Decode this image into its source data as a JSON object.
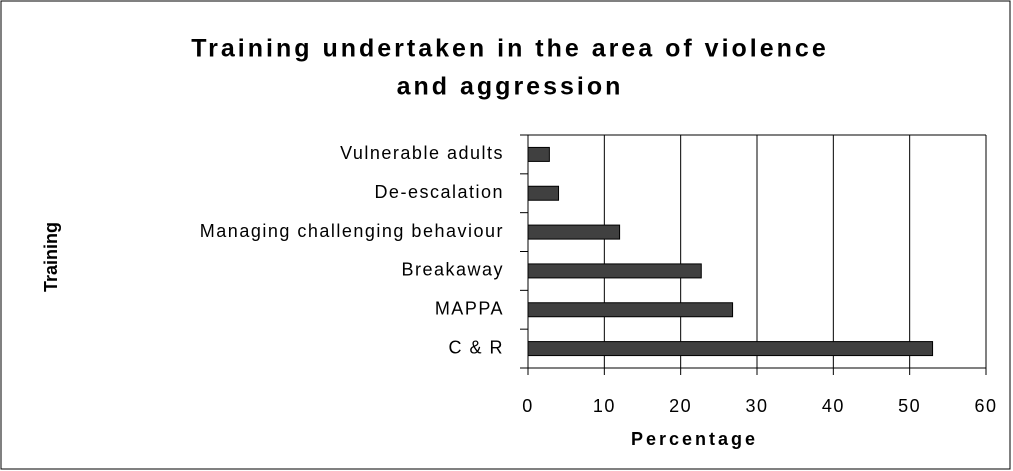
{
  "chart_data": {
    "type": "hbar",
    "title": "Training undertaken in the area of violence and aggression",
    "x_label": "Percentage",
    "y_label": "Training",
    "categories": [
      "Vulnerable adults",
      "De-escalation",
      "Managing challenging behaviour",
      "Breakaway",
      "MAPPA",
      "C & R"
    ],
    "values": [
      2.8,
      4,
      12,
      22.7,
      26.8,
      53
    ],
    "color": "#404040",
    "xlim": [
      0,
      60
    ],
    "xticks": [
      0,
      10,
      20,
      30,
      40,
      50,
      60
    ],
    "grid": true
  }
}
